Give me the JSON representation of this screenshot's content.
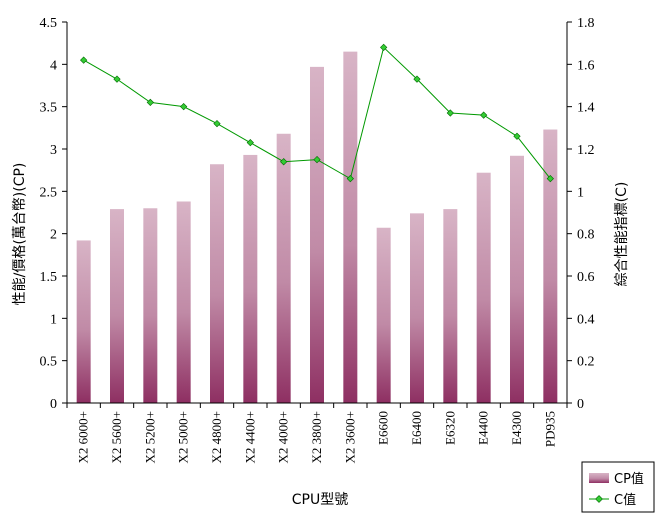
{
  "chart_data": {
    "type": "bar",
    "categories": [
      "X2 6000+",
      "X2 5600+",
      "X2 5200+",
      "X2 5000+",
      "X2 4800+",
      "X2 4400+",
      "X2 4000+",
      "X2 3800+",
      "X2 3600+",
      "E6600",
      "E6400",
      "E6320",
      "E4400",
      "E4300",
      "PD935"
    ],
    "series": [
      {
        "name": "CP值",
        "type": "bar",
        "axis": "left",
        "values": [
          1.92,
          2.29,
          2.3,
          2.38,
          2.82,
          2.93,
          3.18,
          3.97,
          4.15,
          2.07,
          2.24,
          2.29,
          2.72,
          2.92,
          3.23
        ]
      },
      {
        "name": "C值",
        "type": "line",
        "axis": "right",
        "values": [
          1.62,
          1.53,
          1.42,
          1.4,
          1.32,
          1.23,
          1.14,
          1.15,
          1.06,
          1.68,
          1.53,
          1.37,
          1.36,
          1.26,
          1.06
        ]
      }
    ],
    "xlabel": "CPU型號",
    "ylabel": "性能/價格(萬台幣)(CP)",
    "y2label": "綜合性能指標(C)",
    "ylim": [
      0,
      4.5
    ],
    "y2lim": [
      0,
      1.8
    ],
    "yticks": [
      "0",
      "0.5",
      "1",
      "1.5",
      "2",
      "2.5",
      "3",
      "3.5",
      "4",
      "4.5"
    ],
    "y2ticks": [
      "0",
      "0.2",
      "0.4",
      "0.6",
      "0.8",
      "1",
      "1.2",
      "1.4",
      "1.6",
      "1.8"
    ],
    "grid": false,
    "legend_position": "bottom-right",
    "colors": {
      "bar_top": "#d8b4c6",
      "bar_bottom": "#8e2f62",
      "line": "#009900",
      "marker": "#33cc33"
    }
  }
}
